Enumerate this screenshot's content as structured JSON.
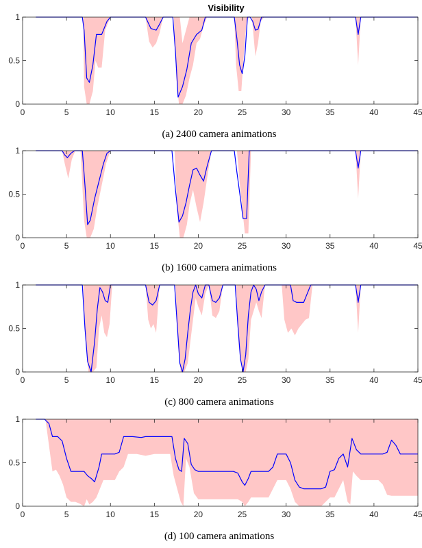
{
  "figure": {
    "title": "Visibility"
  },
  "chart_data": [
    {
      "type": "line",
      "caption": "(a) 2400 camera animations",
      "xlim": [
        0,
        45
      ],
      "ylim": [
        0,
        1
      ],
      "xticks": [
        0,
        5,
        10,
        15,
        20,
        25,
        30,
        35,
        40,
        45
      ],
      "yticks": [
        0,
        0.5,
        1
      ],
      "ytick_labels": [
        "0",
        "0.5",
        "1"
      ],
      "colors": {
        "line": "#0000ff",
        "band": "#ffc7c7"
      },
      "series": [
        {
          "role": "mean",
          "x": [
            1.5,
            6.8,
            7.0,
            7.3,
            7.6,
            8.0,
            8.4,
            9.0,
            9.6,
            10.0,
            14.0,
            14.6,
            15.2,
            15.6,
            16.0,
            17.1,
            17.4,
            17.7,
            18.2,
            18.7,
            19.2,
            19.8,
            20.4,
            20.8,
            21.0,
            24.1,
            24.4,
            24.7,
            25.0,
            25.3,
            25.6,
            25.9,
            26.2,
            26.5,
            26.8,
            27.2,
            27.5,
            37.9,
            38.2,
            38.5,
            45
          ],
          "y": [
            1,
            1,
            0.85,
            0.3,
            0.25,
            0.45,
            0.8,
            0.8,
            0.95,
            1,
            1,
            0.87,
            0.85,
            0.92,
            1,
            1,
            0.6,
            0.08,
            0.2,
            0.4,
            0.7,
            0.8,
            0.85,
            1,
            1,
            1,
            0.75,
            0.45,
            0.35,
            0.55,
            1,
            1,
            0.95,
            0.85,
            0.86,
            1,
            1,
            1,
            0.8,
            1,
            1
          ]
        },
        {
          "role": "upper",
          "x": [
            1.5,
            6.8,
            7.0,
            7.4,
            7.8,
            8.2,
            8.6,
            9.0,
            9.3,
            10.0,
            14.0,
            14.6,
            15.2,
            15.6,
            16.0,
            17.6,
            17.9,
            18.2,
            18.6,
            19.0,
            19.4,
            19.8,
            20.4,
            21.0,
            24.1,
            24.4,
            24.8,
            25.2,
            25.6,
            25.9,
            26.3,
            26.7,
            27.1,
            27.5,
            37.9,
            38.2,
            38.5,
            45
          ],
          "y": [
            1,
            1,
            1,
            1,
            1,
            1,
            1,
            1,
            1,
            1,
            1,
            1,
            1,
            1,
            1,
            1,
            1,
            0.7,
            0.85,
            1,
            1,
            1,
            1,
            1,
            1,
            1,
            1,
            1,
            1,
            1,
            1,
            1,
            1,
            1,
            1,
            1,
            1,
            1
          ]
        },
        {
          "role": "lower",
          "x": [
            1.5,
            6.9,
            7.0,
            7.3,
            7.6,
            8.0,
            8.3,
            8.6,
            9.0,
            9.4,
            10.0,
            14.0,
            14.4,
            14.8,
            15.2,
            15.6,
            16.0,
            17.2,
            17.5,
            17.8,
            18.2,
            18.6,
            19.0,
            19.4,
            19.8,
            20.2,
            20.6,
            21.0,
            24.1,
            24.3,
            24.6,
            24.9,
            25.2,
            25.5,
            25.8,
            26.1,
            26.5,
            26.8,
            27.1,
            27.5,
            37.9,
            38.2,
            38.5,
            45
          ],
          "y": [
            1,
            1,
            0.2,
            0.0,
            0.0,
            0.15,
            0.5,
            0.42,
            0.42,
            0.85,
            1,
            1,
            0.72,
            0.65,
            0.7,
            0.82,
            1,
            1,
            0.3,
            0.0,
            0.0,
            0.1,
            0.3,
            0.45,
            0.7,
            0.75,
            0.9,
            1,
            1,
            0.45,
            0.15,
            0.15,
            0.6,
            0.95,
            1,
            1,
            0.55,
            0.7,
            0.95,
            1,
            1,
            0.45,
            1,
            1
          ]
        }
      ]
    },
    {
      "type": "line",
      "caption": "(b) 1600 camera animations",
      "xlim": [
        0,
        45
      ],
      "ylim": [
        0,
        1
      ],
      "xticks": [
        0,
        5,
        10,
        15,
        20,
        25,
        30,
        35,
        40,
        45
      ],
      "yticks": [
        0,
        0.5,
        1
      ],
      "ytick_labels": [
        "0",
        "0.5",
        "1"
      ],
      "colors": {
        "line": "#0000ff",
        "band": "#ffc7c7"
      },
      "series": [
        {
          "role": "mean",
          "x": [
            1.5,
            4.5,
            4.8,
            5.1,
            5.5,
            5.9,
            6.8,
            7.1,
            7.4,
            7.7,
            8.2,
            8.7,
            9.2,
            9.6,
            10.0,
            17.0,
            17.4,
            17.8,
            18.2,
            18.6,
            19.0,
            19.4,
            19.8,
            20.2,
            20.6,
            21.0,
            21.5,
            24.1,
            24.4,
            24.8,
            25.1,
            25.5,
            25.8,
            37.9,
            38.2,
            38.5,
            45
          ],
          "y": [
            1,
            1,
            0.95,
            0.92,
            0.97,
            1,
            1,
            0.6,
            0.15,
            0.2,
            0.45,
            0.65,
            0.85,
            0.97,
            1,
            1,
            0.55,
            0.18,
            0.25,
            0.4,
            0.6,
            0.78,
            0.8,
            0.72,
            0.65,
            0.82,
            1,
            1,
            0.75,
            0.45,
            0.22,
            0.22,
            1,
            1,
            0.8,
            1,
            1
          ]
        },
        {
          "role": "upper",
          "x": [
            1.5,
            45
          ],
          "y": [
            1,
            1
          ]
        },
        {
          "role": "lower",
          "x": [
            1.5,
            4.5,
            4.8,
            5.2,
            5.6,
            6.0,
            6.6,
            7.0,
            7.3,
            7.7,
            8.1,
            8.5,
            9.0,
            9.5,
            10.0,
            17.3,
            17.6,
            17.9,
            18.3,
            18.7,
            19.0,
            19.4,
            19.8,
            20.2,
            20.6,
            21.0,
            21.5,
            24.4,
            24.7,
            25.0,
            25.3,
            25.7,
            26.0,
            37.9,
            38.2,
            38.5,
            45
          ],
          "y": [
            1,
            1,
            0.85,
            0.68,
            0.9,
            1,
            1,
            0.2,
            0.0,
            0.0,
            0.1,
            0.35,
            0.6,
            0.85,
            1,
            1,
            0.3,
            0.0,
            0.0,
            0.15,
            0.38,
            0.55,
            0.35,
            0.18,
            0.4,
            0.68,
            1,
            1,
            0.65,
            0.35,
            0.05,
            0.05,
            1,
            1,
            0.45,
            1,
            1
          ]
        }
      ]
    },
    {
      "type": "line",
      "caption": "(c) 800 camera animations",
      "xlim": [
        0,
        45
      ],
      "ylim": [
        0,
        1
      ],
      "xticks": [
        0,
        5,
        10,
        15,
        20,
        25,
        30,
        35,
        40,
        45
      ],
      "yticks": [
        0,
        0.5,
        1
      ],
      "ytick_labels": [
        "0",
        "0.5",
        "1"
      ],
      "colors": {
        "line": "#0000ff",
        "band": "#ffc7c7"
      },
      "series": [
        {
          "role": "mean",
          "x": [
            1.5,
            6.8,
            7.1,
            7.4,
            7.8,
            8.2,
            8.5,
            8.8,
            9.1,
            9.4,
            9.7,
            10.0,
            14.0,
            14.4,
            14.8,
            15.2,
            15.6,
            17.3,
            17.6,
            17.9,
            18.2,
            18.5,
            18.8,
            19.1,
            19.4,
            19.7,
            20.0,
            20.4,
            20.8,
            21.2,
            21.6,
            22.0,
            22.4,
            22.8,
            23.2,
            24.2,
            24.5,
            24.8,
            25.1,
            25.4,
            25.7,
            26.0,
            26.3,
            26.6,
            26.9,
            27.2,
            27.6,
            30.5,
            30.8,
            31.2,
            31.6,
            32.0,
            32.4,
            32.8,
            37.9,
            38.2,
            38.5,
            45
          ],
          "y": [
            1,
            1,
            0.5,
            0.12,
            0.0,
            0.35,
            0.72,
            0.97,
            0.92,
            0.82,
            0.8,
            1,
            1,
            0.8,
            0.77,
            0.82,
            1,
            1,
            0.55,
            0.1,
            0.0,
            0.15,
            0.45,
            0.72,
            0.92,
            1,
            0.9,
            0.85,
            1,
            1,
            0.82,
            0.8,
            0.85,
            1,
            1,
            1,
            0.55,
            0.15,
            0.0,
            0.2,
            0.65,
            0.92,
            1,
            0.95,
            0.82,
            0.92,
            1,
            1,
            0.82,
            0.8,
            0.8,
            0.8,
            0.9,
            1,
            1,
            0.8,
            1,
            1
          ]
        },
        {
          "role": "upper",
          "x": [
            1.5,
            45
          ],
          "y": [
            1,
            1
          ]
        },
        {
          "role": "lower",
          "x": [
            1.5,
            6.9,
            7.2,
            7.5,
            8.0,
            8.4,
            8.7,
            9.0,
            9.3,
            9.6,
            9.9,
            10.2,
            14.0,
            14.3,
            14.6,
            14.9,
            15.2,
            15.6,
            17.4,
            17.7,
            18.0,
            18.4,
            18.8,
            19.1,
            19.4,
            19.7,
            20.0,
            20.4,
            20.8,
            21.2,
            21.6,
            22.0,
            22.4,
            22.8,
            23.2,
            24.3,
            24.6,
            25.0,
            25.4,
            25.7,
            26.0,
            26.3,
            26.6,
            26.9,
            27.2,
            27.6,
            29.5,
            29.8,
            30.2,
            30.6,
            31.0,
            31.4,
            31.8,
            32.2,
            32.6,
            33.0,
            37.9,
            38.2,
            38.5,
            45
          ],
          "y": [
            1,
            1,
            0.3,
            0.0,
            0.0,
            0.05,
            0.5,
            0.65,
            0.45,
            0.4,
            0.55,
            1,
            1,
            0.6,
            0.5,
            0.55,
            0.45,
            1,
            1,
            0.3,
            0.0,
            0.0,
            0.1,
            0.35,
            0.6,
            0.85,
            0.75,
            0.65,
            0.9,
            1,
            0.65,
            0.62,
            0.7,
            1,
            1,
            1,
            0.3,
            0.0,
            0.0,
            0.15,
            0.6,
            0.7,
            0.8,
            0.7,
            0.62,
            1,
            1,
            0.6,
            0.45,
            0.5,
            0.42,
            0.5,
            0.55,
            0.6,
            0.62,
            1,
            1,
            0.45,
            1,
            1
          ]
        }
      ]
    },
    {
      "type": "line",
      "caption": "(d) 100 camera animations",
      "xlim": [
        0,
        45
      ],
      "ylim": [
        0,
        1
      ],
      "xticks": [
        0,
        5,
        10,
        15,
        20,
        25,
        30,
        35,
        40,
        45
      ],
      "yticks": [
        0,
        0.5,
        1
      ],
      "ytick_labels": [
        "0",
        "0.5",
        "1"
      ],
      "colors": {
        "line": "#0000ff",
        "band": "#ffc7c7"
      },
      "series": [
        {
          "role": "mean",
          "x": [
            1.5,
            2.5,
            3.0,
            3.4,
            4.0,
            4.5,
            5.0,
            5.5,
            6.0,
            7.0,
            7.4,
            7.8,
            8.2,
            8.7,
            9.0,
            10.5,
            11.0,
            11.5,
            12.5,
            13.5,
            14.0,
            15.0,
            16.0,
            17.0,
            17.4,
            17.8,
            18.1,
            18.4,
            18.8,
            19.2,
            19.6,
            20.0,
            20.4,
            21.0,
            24.0,
            24.5,
            25.0,
            25.3,
            25.7,
            26.0,
            27.0,
            28.0,
            28.5,
            29.0,
            30.0,
            30.5,
            31.0,
            31.5,
            32.0,
            33.0,
            34.0,
            34.5,
            35.0,
            35.5,
            36.0,
            36.5,
            37.0,
            37.5,
            38.0,
            38.5,
            39.0,
            41.0,
            41.5,
            42.0,
            42.5,
            43.0,
            45
          ],
          "y": [
            1,
            1,
            0.95,
            0.8,
            0.8,
            0.75,
            0.55,
            0.4,
            0.4,
            0.4,
            0.35,
            0.32,
            0.28,
            0.45,
            0.6,
            0.6,
            0.62,
            0.8,
            0.8,
            0.79,
            0.8,
            0.8,
            0.8,
            0.8,
            0.55,
            0.42,
            0.4,
            0.78,
            0.72,
            0.48,
            0.42,
            0.4,
            0.4,
            0.4,
            0.4,
            0.38,
            0.28,
            0.24,
            0.32,
            0.4,
            0.4,
            0.4,
            0.45,
            0.6,
            0.6,
            0.5,
            0.3,
            0.22,
            0.2,
            0.2,
            0.2,
            0.22,
            0.4,
            0.42,
            0.55,
            0.6,
            0.45,
            0.78,
            0.65,
            0.6,
            0.6,
            0.6,
            0.62,
            0.76,
            0.7,
            0.6,
            0.6
          ]
        },
        {
          "role": "upper",
          "x": [
            1.5,
            2.8,
            3.2,
            3.6,
            45
          ],
          "y": [
            1,
            1,
            1,
            1,
            1
          ]
        },
        {
          "role": "lower",
          "x": [
            1.5,
            2.6,
            3.0,
            3.4,
            3.8,
            4.2,
            4.6,
            5.0,
            5.5,
            6.0,
            6.5,
            7.0,
            7.3,
            7.6,
            8.0,
            8.4,
            8.8,
            9.2,
            10.5,
            11.0,
            11.5,
            12.0,
            13.0,
            14.0,
            15.0,
            16.0,
            16.8,
            17.2,
            17.6,
            18.0,
            18.3,
            18.6,
            19.0,
            19.5,
            20.0,
            20.5,
            24.0,
            24.5,
            25.0,
            25.3,
            25.7,
            26.0,
            27.5,
            28.0,
            28.5,
            29.0,
            30.0,
            30.5,
            31.0,
            31.5,
            32.0,
            33.5,
            34.0,
            34.5,
            35.0,
            35.5,
            36.0,
            36.5,
            37.0,
            37.3,
            37.6,
            38.0,
            38.5,
            40.5,
            41.0,
            41.5,
            42.0,
            42.5,
            43.0,
            45
          ],
          "y": [
            1,
            1,
            0.7,
            0.4,
            0.42,
            0.35,
            0.25,
            0.1,
            0.05,
            0.05,
            0.03,
            0.0,
            0.08,
            0.02,
            0.05,
            0.1,
            0.2,
            0.3,
            0.3,
            0.4,
            0.45,
            0.6,
            0.6,
            0.58,
            0.6,
            0.6,
            0.6,
            0.35,
            0.2,
            0.05,
            0.0,
            0.55,
            0.45,
            0.15,
            0.08,
            0.08,
            0.08,
            0.08,
            0.05,
            0.0,
            0.05,
            0.1,
            0.1,
            0.1,
            0.2,
            0.3,
            0.3,
            0.2,
            0.05,
            0.0,
            0.0,
            0.0,
            0.0,
            0.05,
            0.1,
            0.1,
            0.2,
            0.3,
            0.05,
            0.02,
            0.4,
            0.35,
            0.3,
            0.3,
            0.25,
            0.13,
            0.12,
            0.12,
            0.12,
            0.12
          ]
        }
      ]
    }
  ]
}
